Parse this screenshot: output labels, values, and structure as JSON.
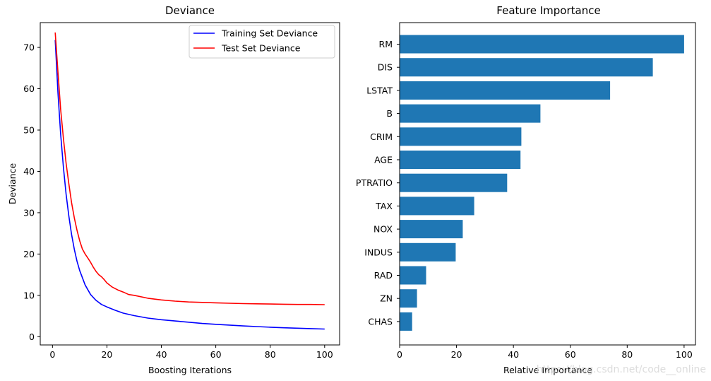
{
  "chart_data": [
    {
      "type": "line",
      "title": "Deviance",
      "xlabel": "Boosting Iterations",
      "ylabel": "Deviance",
      "xlim": [
        -4.5,
        105.5
      ],
      "ylim": [
        -2,
        76
      ],
      "xticks": [
        0,
        20,
        40,
        60,
        80,
        100
      ],
      "yticks": [
        0,
        10,
        20,
        30,
        40,
        50,
        60,
        70
      ],
      "grid": false,
      "legend_position": "top-right",
      "series": [
        {
          "name": "Training Set Deviance",
          "color": "#0000ff",
          "x": [
            1,
            2,
            3,
            4,
            5,
            6,
            7,
            8,
            9,
            10,
            12,
            14,
            16,
            18,
            20,
            23,
            26,
            30,
            35,
            40,
            45,
            50,
            55,
            60,
            65,
            70,
            75,
            80,
            85,
            90,
            95,
            100
          ],
          "y": [
            71.8,
            59.0,
            49.0,
            41.0,
            34.5,
            29.2,
            24.8,
            21.2,
            18.3,
            16.0,
            12.5,
            10.2,
            8.8,
            7.8,
            7.2,
            6.4,
            5.7,
            5.1,
            4.5,
            4.1,
            3.8,
            3.5,
            3.2,
            3.0,
            2.8,
            2.6,
            2.45,
            2.3,
            2.15,
            2.05,
            1.95,
            1.85
          ]
        },
        {
          "name": "Test Set Deviance",
          "color": "#ff0000",
          "x": [
            1,
            2,
            3,
            4,
            5,
            6,
            7,
            8,
            9,
            10,
            11,
            12,
            13,
            14,
            15,
            16,
            17,
            18,
            19,
            20,
            22,
            24,
            26,
            28,
            30,
            35,
            40,
            45,
            50,
            55,
            60,
            65,
            70,
            75,
            80,
            85,
            90,
            95,
            100
          ],
          "y": [
            73.6,
            64.0,
            55.0,
            48.0,
            42.0,
            37.0,
            32.5,
            28.8,
            25.8,
            23.2,
            21.2,
            20.0,
            19.0,
            18.0,
            16.8,
            15.8,
            15.0,
            14.5,
            13.8,
            13.0,
            12.0,
            11.3,
            10.8,
            10.2,
            10.0,
            9.3,
            8.9,
            8.6,
            8.4,
            8.3,
            8.2,
            8.1,
            8.0,
            7.95,
            7.9,
            7.85,
            7.8,
            7.8,
            7.75
          ]
        }
      ]
    },
    {
      "type": "bar",
      "orientation": "horizontal",
      "title": "Feature Importance",
      "xlabel": "Relative Importance",
      "ylabel": "",
      "xlim": [
        0,
        104
      ],
      "xticks": [
        0,
        20,
        40,
        60,
        80,
        100
      ],
      "grid": false,
      "color": "#1f77b4",
      "categories": [
        "RM",
        "DIS",
        "LSTAT",
        "B",
        "CRIM",
        "AGE",
        "PTRATIO",
        "TAX",
        "NOX",
        "INDUS",
        "RAD",
        "ZN",
        "CHAS"
      ],
      "values": [
        100,
        89,
        74,
        49.5,
        42.8,
        42.5,
        37.8,
        26.2,
        22.2,
        19.7,
        9.3,
        6.1,
        4.4
      ]
    }
  ],
  "watermark": "https://blog.csdn.net/code__online"
}
